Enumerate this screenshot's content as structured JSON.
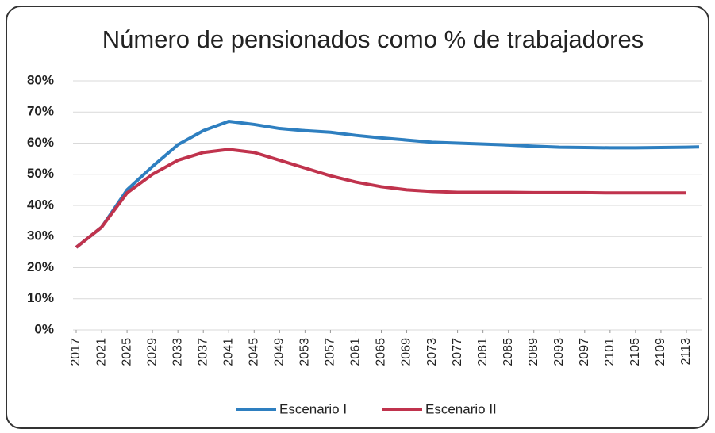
{
  "chart_data": {
    "type": "line",
    "title": "Número de pensionados como % de trabajadores",
    "x": [
      2017,
      2021,
      2025,
      2029,
      2033,
      2037,
      2041,
      2045,
      2049,
      2053,
      2057,
      2061,
      2065,
      2069,
      2073,
      2077,
      2081,
      2085,
      2089,
      2093,
      2097,
      2101,
      2105,
      2109,
      2113,
      2115
    ],
    "xlim": [
      2016.5,
      2115.5
    ],
    "xticks": [
      2017,
      2021,
      2025,
      2029,
      2033,
      2037,
      2041,
      2045,
      2049,
      2053,
      2057,
      2061,
      2065,
      2069,
      2073,
      2077,
      2081,
      2085,
      2089,
      2093,
      2097,
      2101,
      2105,
      2109,
      2113
    ],
    "ylim": [
      0,
      80
    ],
    "yticks": [
      {
        "value": 0,
        "label": "0%"
      },
      {
        "value": 10,
        "label": "10%"
      },
      {
        "value": 20,
        "label": "20%"
      },
      {
        "value": 30,
        "label": "30%"
      },
      {
        "value": 40,
        "label": "40%"
      },
      {
        "value": 50,
        "label": "50%"
      },
      {
        "value": 60,
        "label": "60%"
      },
      {
        "value": 70,
        "label": "70%"
      },
      {
        "value": 80,
        "label": "80%"
      }
    ],
    "grid": true,
    "legend": "bottom",
    "series": [
      {
        "name": "Escenario I",
        "color": "#2e7fc0",
        "values": [
          26.5,
          33,
          45,
          52.5,
          59.5,
          64,
          67,
          66,
          64.7,
          64,
          63.5,
          62.5,
          61.7,
          61,
          60.3,
          60,
          59.7,
          59.4,
          59,
          58.7,
          58.6,
          58.5,
          58.5,
          58.6,
          58.7,
          58.8
        ]
      },
      {
        "name": "Escenario II",
        "color": "#c0334d",
        "values": [
          26.5,
          33,
          44,
          50,
          54.5,
          57,
          58,
          57,
          54.5,
          52,
          49.5,
          47.5,
          46,
          45,
          44.5,
          44.2,
          44.2,
          44.2,
          44.1,
          44.1,
          44.1,
          44,
          44,
          44,
          44,
          null
        ]
      }
    ]
  }
}
